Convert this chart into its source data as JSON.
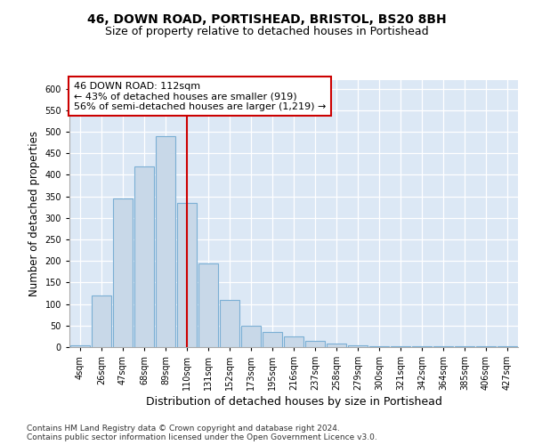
{
  "title1": "46, DOWN ROAD, PORTISHEAD, BRISTOL, BS20 8BH",
  "title2": "Size of property relative to detached houses in Portishead",
  "xlabel": "Distribution of detached houses by size in Portishead",
  "ylabel": "Number of detached properties",
  "categories": [
    "4sqm",
    "26sqm",
    "47sqm",
    "68sqm",
    "89sqm",
    "110sqm",
    "131sqm",
    "152sqm",
    "173sqm",
    "195sqm",
    "216sqm",
    "237sqm",
    "258sqm",
    "279sqm",
    "300sqm",
    "321sqm",
    "342sqm",
    "364sqm",
    "385sqm",
    "406sqm",
    "427sqm"
  ],
  "values": [
    5,
    120,
    345,
    420,
    490,
    335,
    195,
    110,
    50,
    35,
    25,
    15,
    8,
    5,
    3,
    2,
    2,
    2,
    2,
    2,
    2
  ],
  "bar_color": "#c8d8e8",
  "bar_edgecolor": "#7bafd4",
  "bar_linewidth": 0.8,
  "vline_x": 5.0,
  "vline_color": "#cc0000",
  "annotation_text": "46 DOWN ROAD: 112sqm\n← 43% of detached houses are smaller (919)\n56% of semi-detached houses are larger (1,219) →",
  "annotation_box_color": "#ffffff",
  "annotation_box_edgecolor": "#cc0000",
  "ylim": [
    0,
    620
  ],
  "yticks": [
    0,
    50,
    100,
    150,
    200,
    250,
    300,
    350,
    400,
    450,
    500,
    550,
    600
  ],
  "background_color": "#dce8f5",
  "plot_background": "#dce8f5",
  "footer1": "Contains HM Land Registry data © Crown copyright and database right 2024.",
  "footer2": "Contains public sector information licensed under the Open Government Licence v3.0.",
  "title1_fontsize": 10,
  "title2_fontsize": 9,
  "xlabel_fontsize": 9,
  "ylabel_fontsize": 8.5,
  "tick_fontsize": 7,
  "annotation_fontsize": 8,
  "footer_fontsize": 6.5
}
